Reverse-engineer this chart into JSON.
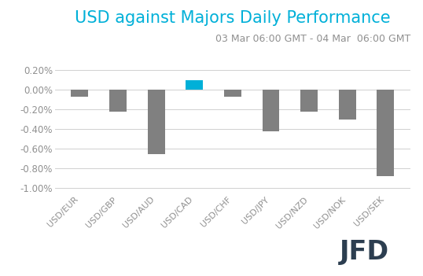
{
  "title": "USD against Majors Daily Performance",
  "subtitle": "03 Mar 06:00 GMT - 04 Mar  06:00 GMT",
  "categories": [
    "USD/EUR",
    "USD/GBP",
    "USD/AUD",
    "USD/CAD",
    "USD/CHF",
    "USD/JPY",
    "USD/NZD",
    "USD/NOK",
    "USD/SEK"
  ],
  "values": [
    -0.0007,
    -0.0022,
    -0.0065,
    0.001,
    -0.0007,
    -0.0042,
    -0.0022,
    -0.003,
    -0.0088
  ],
  "bar_colors": [
    "#808080",
    "#808080",
    "#808080",
    "#00b0d8",
    "#808080",
    "#808080",
    "#808080",
    "#808080",
    "#808080"
  ],
  "title_color": "#00b0d8",
  "subtitle_color": "#909090",
  "title_fontsize": 15,
  "subtitle_fontsize": 9,
  "ylim": [
    -0.0105,
    0.0035
  ],
  "yticks": [
    0.002,
    0.0,
    -0.002,
    -0.004,
    -0.006,
    -0.008,
    -0.01
  ],
  "ytick_labels": [
    "0.20%",
    "0.00%",
    "-0.20%",
    "-0.40%",
    "-0.60%",
    "-0.80%",
    "-1.00%"
  ],
  "background_color": "#ffffff",
  "grid_color": "#d0d0d0",
  "tick_label_color": "#909090",
  "bar_width": 0.45,
  "watermark": "JFD",
  "watermark_color": "#2c3e50"
}
